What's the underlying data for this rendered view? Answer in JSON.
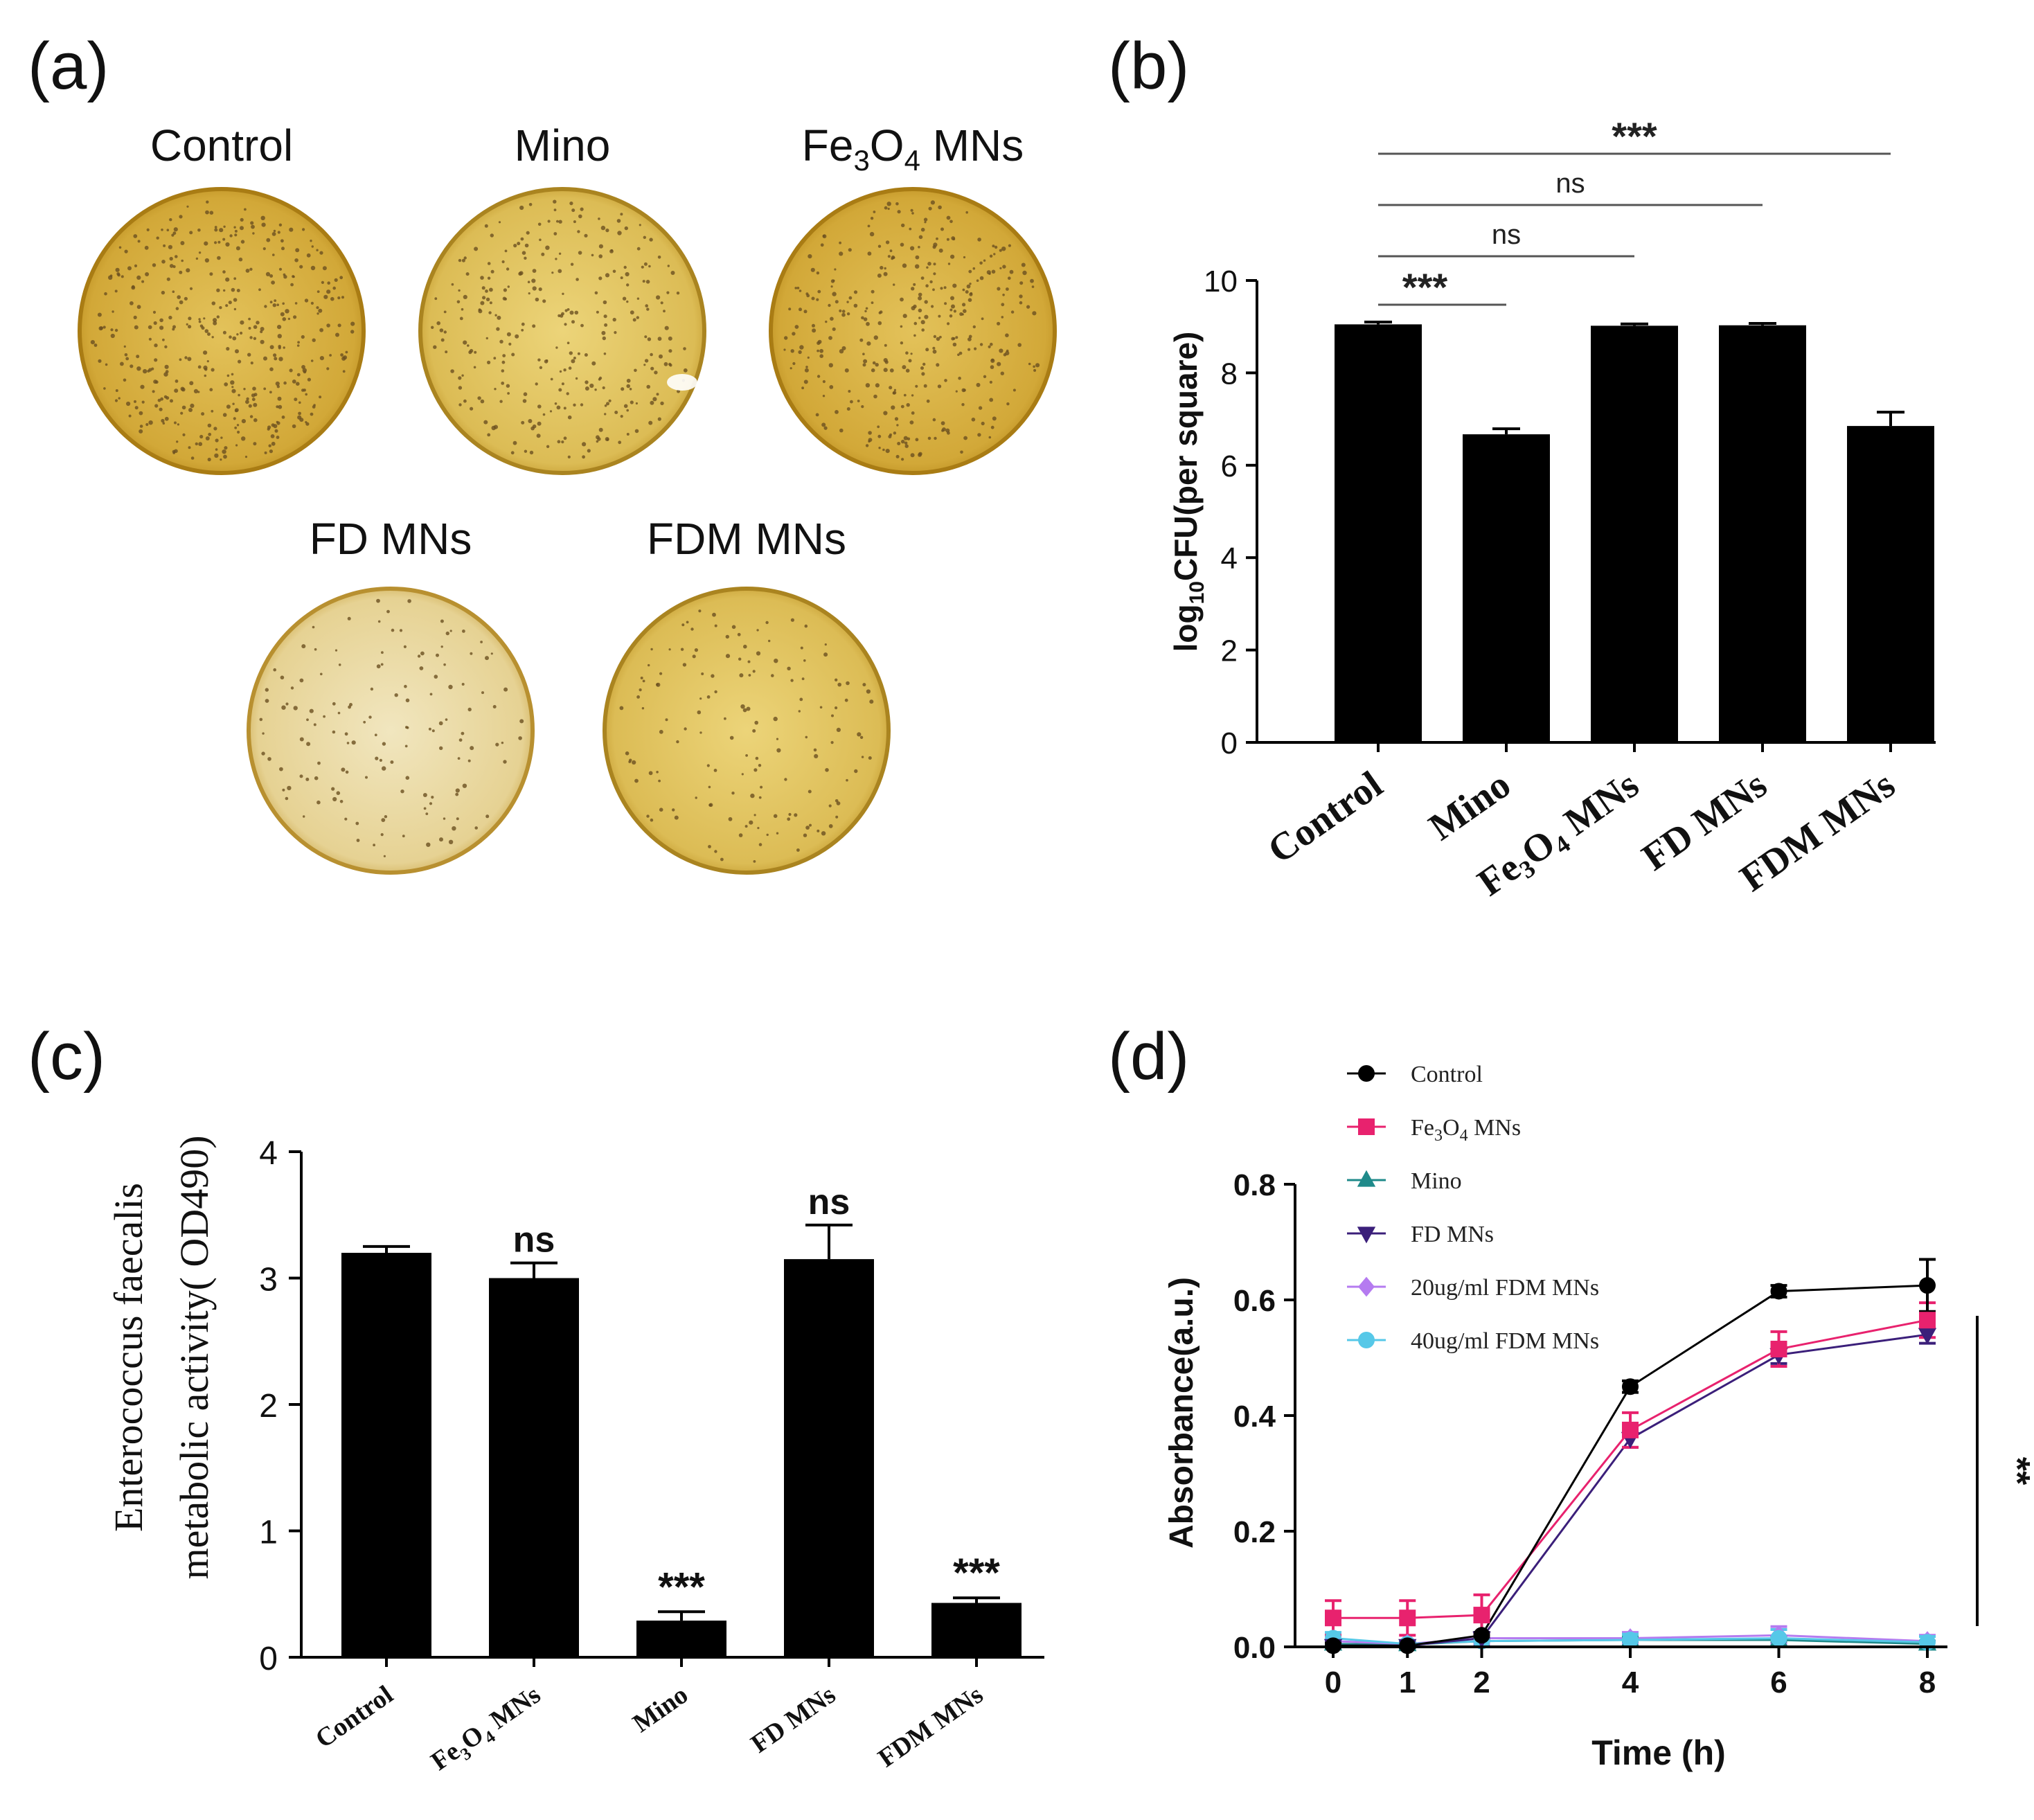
{
  "panels": {
    "a": {
      "letter": "(a)",
      "plates": [
        {
          "label": "Control"
        },
        {
          "label": "Mino"
        },
        {
          "label_base": "Fe",
          "label_sub1": "3",
          "label_mid": "O",
          "label_sub2": "4",
          "label_end": " MNs"
        },
        {
          "label": "FD MNs"
        },
        {
          "label": "FDM MNs"
        }
      ],
      "colors": {
        "plate_rim": "#b8860b",
        "plate_fill": "#d8b43c",
        "plate_pale": "#ead9a0",
        "colony": "#6b5020"
      }
    },
    "b": {
      "letter": "(b)"
    },
    "c": {
      "letter": "(c)"
    },
    "d": {
      "letter": "(d)"
    }
  },
  "chart_data": [
    {
      "panel": "b",
      "type": "bar",
      "categories": [
        "Control",
        "Mino",
        "Fe3O4 MNs",
        "FD MNs",
        "FDM MNs"
      ],
      "category_labels": [
        "Control",
        "Mino",
        "Fe₃O₄ MNs",
        "FD MNs",
        "FDM MNs"
      ],
      "values": [
        9.05,
        6.67,
        9.02,
        9.03,
        6.85
      ],
      "errors": [
        0.05,
        0.12,
        0.04,
        0.04,
        0.3
      ],
      "ylabel_base": "log",
      "ylabel_sub": "10",
      "ylabel_rest": "CFU(per square)",
      "ylim": [
        0,
        10
      ],
      "yticks": [
        "0",
        "2",
        "4",
        "6",
        "8",
        "10"
      ],
      "significance": [
        {
          "from": 0,
          "to": 1,
          "label": "***"
        },
        {
          "from": 0,
          "to": 2,
          "label": "ns"
        },
        {
          "from": 0,
          "to": 3,
          "label": "ns"
        },
        {
          "from": 0,
          "to": 4,
          "label": "***"
        }
      ],
      "bar_color": "#000000"
    },
    {
      "panel": "c",
      "type": "bar",
      "categories": [
        "Control",
        "Fe3O4 MNs",
        "Mino",
        "FD MNs",
        "FDM MNs"
      ],
      "category_labels": [
        "Control",
        "Fe₃O₄ MNs",
        "Mino",
        "FD MNs",
        "FDM MNs"
      ],
      "values": [
        3.2,
        3.0,
        0.29,
        3.15,
        0.43
      ],
      "errors": [
        0.05,
        0.12,
        0.07,
        0.27,
        0.04
      ],
      "annotations": [
        "",
        "ns",
        "***",
        "ns",
        "***"
      ],
      "ylabel_line1": "Enterococcus faecalis",
      "ylabel_line2": "metabolic activity( OD490)",
      "ylim": [
        0,
        4
      ],
      "yticks": [
        "0",
        "1",
        "2",
        "3",
        "4"
      ],
      "bar_color": "#000000"
    },
    {
      "panel": "d",
      "type": "line",
      "x": [
        0,
        1,
        2,
        4,
        6,
        8
      ],
      "xticks": [
        "0",
        "1",
        "2",
        "4",
        "6",
        "8"
      ],
      "xlabel": "Time (h)",
      "ylabel": "Absorbance(a.u.)",
      "ylim": [
        0,
        0.8
      ],
      "yticks": [
        "0.0",
        "0.2",
        "0.4",
        "0.6",
        "0.8"
      ],
      "significance_label": "**",
      "series": [
        {
          "name": "Control",
          "legend": "Control",
          "color": "#000000",
          "marker": "circle",
          "values": [
            0.002,
            0.002,
            0.02,
            0.45,
            0.615,
            0.625
          ],
          "errors": [
            0.005,
            0.005,
            0.005,
            0.01,
            0.01,
            0.045
          ]
        },
        {
          "name": "Fe3O4 MNs",
          "legend_base": "Fe",
          "legend_sub1": "3",
          "legend_mid": "O",
          "legend_sub2": "4",
          "legend_end": " MNs",
          "color": "#e8226e",
          "marker": "square",
          "values": [
            0.05,
            0.05,
            0.055,
            0.375,
            0.515,
            0.565
          ],
          "errors": [
            0.03,
            0.03,
            0.035,
            0.03,
            0.03,
            0.03
          ]
        },
        {
          "name": "Mino",
          "legend": "Mino",
          "color": "#1f8a8a",
          "marker": "triangle-up",
          "values": [
            0.005,
            0.004,
            0.01,
            0.012,
            0.012,
            0.005
          ],
          "errors": [
            0.005,
            0.005,
            0.005,
            0.005,
            0.005,
            0.005
          ]
        },
        {
          "name": "FD MNs",
          "legend": "FD MNs",
          "color": "#3b1f7a",
          "marker": "triangle-down",
          "values": [
            0.002,
            0.002,
            0.015,
            0.36,
            0.505,
            0.54
          ],
          "errors": [
            0.005,
            0.005,
            0.005,
            0.015,
            0.015,
            0.015
          ]
        },
        {
          "name": "20ug/ml FDM MNs",
          "legend": "20ug/ml FDM MNs",
          "color": "#b57bf0",
          "marker": "diamond",
          "values": [
            0.01,
            0.005,
            0.015,
            0.015,
            0.02,
            0.01
          ],
          "errors": [
            0.01,
            0.005,
            0.01,
            0.01,
            0.015,
            0.01
          ]
        },
        {
          "name": "40ug/ml FDM MNs",
          "legend": "40ug/ml FDM MNs",
          "color": "#56c8e8",
          "marker": "circle",
          "values": [
            0.015,
            0.005,
            0.01,
            0.012,
            0.015,
            0.008
          ],
          "errors": [
            0.01,
            0.005,
            0.01,
            0.01,
            0.015,
            0.01
          ]
        }
      ]
    }
  ]
}
